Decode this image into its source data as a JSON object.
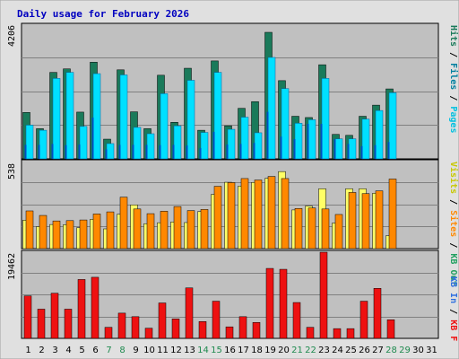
{
  "chart_data": {
    "type": "bar",
    "title": "Daily usage for February 2026",
    "x": [
      "1",
      "2",
      "3",
      "4",
      "5",
      "6",
      "7",
      "8",
      "9",
      "10",
      "11",
      "12",
      "13",
      "14",
      "15",
      "16",
      "17",
      "18",
      "19",
      "20",
      "21",
      "22",
      "23",
      "24",
      "25",
      "26",
      "27",
      "28",
      "29",
      "30",
      "31"
    ],
    "weekend_days": [
      "7",
      "8",
      "14",
      "15",
      "21",
      "22",
      "28",
      "29"
    ],
    "top_panel": {
      "max_label": "4206",
      "ylim": [
        0,
        4206
      ],
      "grid": true,
      "series": [
        {
          "name": "Hits",
          "values": [
            1460,
            950,
            2720,
            2830,
            1470,
            3040,
            620,
            2800,
            1480,
            950,
            2630,
            1150,
            2850,
            900,
            3080,
            1040,
            1590,
            1800,
            3980,
            2460,
            1340,
            1300,
            2960,
            770,
            740,
            1340,
            1690,
            2200,
            0,
            0,
            0
          ]
        },
        {
          "name": "Files",
          "values": [
            1060,
            900,
            2530,
            2720,
            1020,
            2680,
            480,
            2640,
            990,
            790,
            2050,
            1040,
            2470,
            830,
            2720,
            930,
            1310,
            820,
            3190,
            2210,
            1120,
            1230,
            2530,
            630,
            630,
            1250,
            1520,
            2080,
            0,
            0,
            0
          ]
        },
        {
          "name": "Pages",
          "values": [
            440,
            440,
            470,
            430,
            450,
            1300,
            300,
            440,
            440,
            440,
            430,
            440,
            420,
            340,
            850,
            450,
            470,
            500,
            1480,
            700,
            620,
            1100,
            1100,
            620,
            470,
            400,
            430,
            530,
            0,
            0,
            0
          ]
        }
      ]
    },
    "middle_panel": {
      "max_label": "538",
      "ylim": [
        0,
        538
      ],
      "grid": true,
      "series": [
        {
          "name": "Visits",
          "values": [
            176,
            136,
            149,
            148,
            129,
            181,
            122,
            212,
            270,
            154,
            160,
            165,
            161,
            229,
            335,
            410,
            386,
            409,
            434,
            476,
            239,
            263,
            370,
            158,
            370,
            370,
            342,
            80,
            0,
            0,
            0
          ]
        },
        {
          "name": "Sites",
          "values": [
            233,
            205,
            171,
            173,
            177,
            214,
            227,
            318,
            245,
            216,
            231,
            260,
            235,
            242,
            385,
            408,
            433,
            424,
            446,
            433,
            248,
            251,
            245,
            211,
            347,
            340,
            357,
            430,
            0,
            0,
            0
          ]
        },
        {
          "name": "KB Out",
          "values": [
            0,
            0,
            0,
            0,
            0,
            0,
            0,
            0,
            0,
            0,
            0,
            0,
            0,
            0,
            0,
            0,
            0,
            0,
            0,
            0,
            0,
            0,
            0,
            0,
            0,
            0,
            0,
            0,
            0,
            0,
            0
          ]
        }
      ]
    },
    "bottom_panel": {
      "max_label": "19462",
      "ylim": [
        0,
        19462
      ],
      "grid": true,
      "series": [
        {
          "name": "KB In",
          "values": [
            0,
            0,
            0,
            0,
            0,
            0,
            0,
            0,
            0,
            0,
            0,
            0,
            0,
            0,
            0,
            0,
            0,
            0,
            0,
            0,
            0,
            0,
            0,
            0,
            0,
            0,
            0,
            0,
            0,
            0,
            0
          ]
        },
        {
          "name": "KB F",
          "values": [
            9600,
            6600,
            10200,
            6600,
            13300,
            13800,
            2500,
            5700,
            4900,
            2300,
            8000,
            4400,
            11400,
            3800,
            8400,
            2600,
            4900,
            3600,
            15800,
            15600,
            8100,
            2500,
            19462,
            2200,
            2200,
            8400,
            11300,
            4200,
            0,
            0,
            0
          ]
        }
      ]
    },
    "axis_labels_right": {
      "top": [
        "Pages",
        "Files",
        "Hits"
      ],
      "middle": [
        "Visits",
        "Sites",
        "KB Out"
      ],
      "bottom": [
        "KB In",
        "KB F"
      ]
    },
    "colors": {
      "background": "#e0e0e0",
      "plot_bg": "#c0c0c0",
      "hits": "#1a7a5a",
      "files": "#00e0ff",
      "pages": "#0050c0",
      "visits": "#ffff66",
      "sites": "#ff8800",
      "kb_in": "#3070e0",
      "kb_out": "#22a060",
      "kb_f": "#ee1111",
      "title": "#0000c0",
      "weekday": "#000000",
      "weekend": "#1f8a4f"
    }
  }
}
